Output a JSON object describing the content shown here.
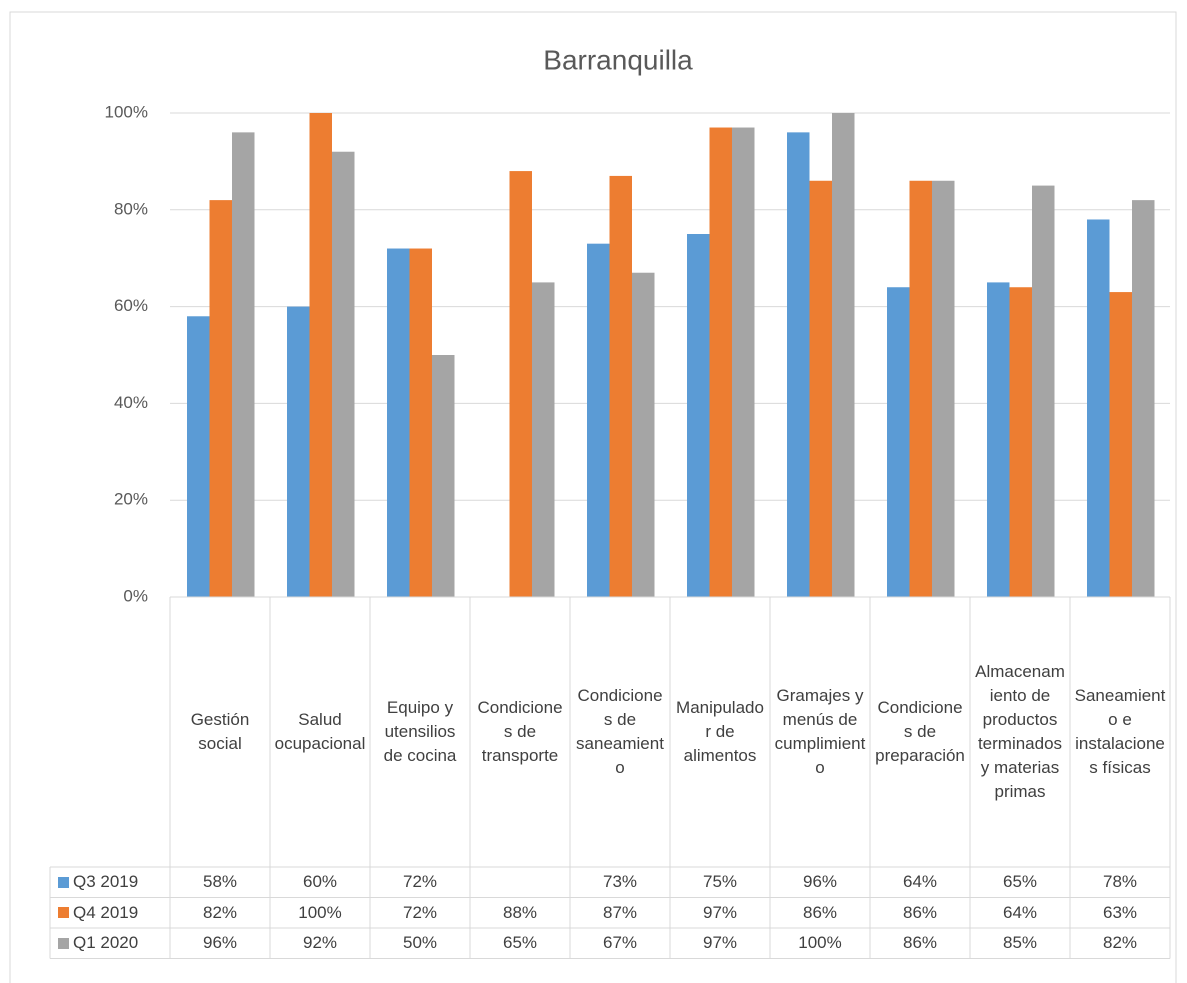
{
  "chart_data": {
    "type": "bar",
    "title": "Barranquilla",
    "categories": [
      "Gestión social",
      "Salud ocupacional",
      "Equipo y utensilios de cocina",
      "Condiciones de transporte",
      "Condiciones de saneamiento",
      "Manipulador de alimentos",
      "Gramajes y menús de cumplimiento",
      "Condiciones de preparación",
      "Almacenamiento de productos terminados y materias primas",
      "Saneamiento e instalaciones físicas"
    ],
    "series": [
      {
        "name": "Q3 2019",
        "color": "#5b9bd5",
        "values": [
          58,
          60,
          72,
          null,
          73,
          75,
          96,
          64,
          65,
          78
        ],
        "value_labels": [
          "58%",
          "60%",
          "72%",
          null,
          "73%",
          "75%",
          "96%",
          "64%",
          "65%",
          "78%"
        ]
      },
      {
        "name": "Q4 2019",
        "color": "#ed7d31",
        "values": [
          82,
          100,
          72,
          88,
          87,
          97,
          86,
          86,
          64,
          63
        ],
        "value_labels": [
          "82%",
          "100%",
          "72%",
          "88%",
          "87%",
          "97%",
          "86%",
          "86%",
          "64%",
          "63%"
        ]
      },
      {
        "name": "Q1 2020",
        "color": "#a5a5a5",
        "values": [
          96,
          92,
          50,
          65,
          67,
          97,
          100,
          86,
          85,
          82
        ],
        "value_labels": [
          "96%",
          "92%",
          "50%",
          "65%",
          "67%",
          "97%",
          "100%",
          "86%",
          "85%",
          "82%"
        ]
      }
    ],
    "ylim": [
      0,
      100
    ],
    "yticks": [
      {
        "value": 0,
        "label": "0%"
      },
      {
        "value": 20,
        "label": "20%"
      },
      {
        "value": 40,
        "label": "40%"
      },
      {
        "value": 60,
        "label": "60%"
      },
      {
        "value": 80,
        "label": "80%"
      },
      {
        "value": 100,
        "label": "100%"
      }
    ],
    "grid": true
  }
}
